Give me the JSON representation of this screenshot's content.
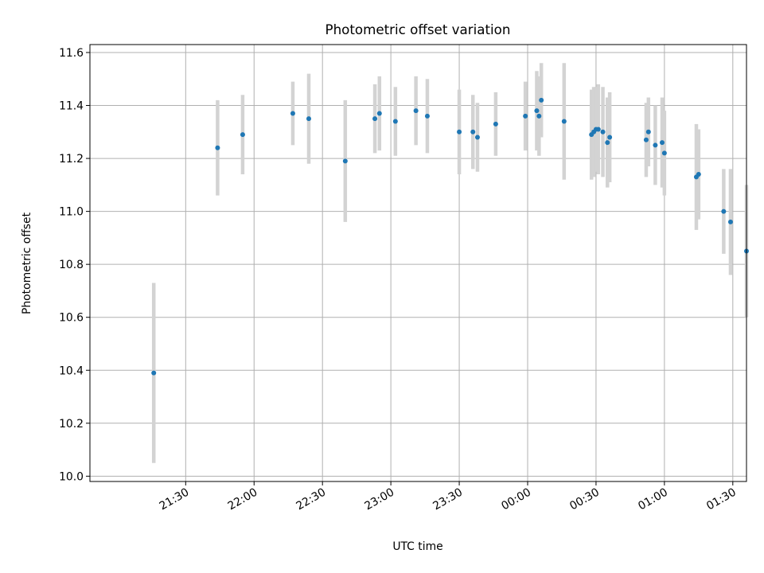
{
  "chart_data": {
    "type": "scatter",
    "title": "Photometric offset variation",
    "xlabel": "UTC time",
    "ylabel": "Photometric offset",
    "x_axis": "time",
    "xlim_minutes_from_2100": [
      -12,
      276
    ],
    "ylim": [
      9.98,
      11.63
    ],
    "x_ticks": [
      {
        "label": "21:30",
        "minute": 30
      },
      {
        "label": "22:00",
        "minute": 60
      },
      {
        "label": "22:30",
        "minute": 90
      },
      {
        "label": "23:00",
        "minute": 120
      },
      {
        "label": "23:30",
        "minute": 150
      },
      {
        "label": "00:00",
        "minute": 180
      },
      {
        "label": "00:30",
        "minute": 210
      },
      {
        "label": "01:00",
        "minute": 240
      },
      {
        "label": "01:30",
        "minute": 270
      }
    ],
    "y_ticks": [
      "10.0",
      "10.2",
      "10.4",
      "10.6",
      "10.8",
      "11.0",
      "11.2",
      "11.4",
      "11.6"
    ],
    "grid": true,
    "colors": {
      "point": "#1f77b4",
      "error_bar": "#d3d3d3",
      "grid": "#b0b0b0",
      "axis": "#000000"
    },
    "series": [
      {
        "points": [
          {
            "time": "21:16",
            "y": 10.39,
            "yerr": 0.34
          },
          {
            "time": "21:44",
            "y": 11.24,
            "yerr": 0.18
          },
          {
            "time": "21:55",
            "y": 11.29,
            "yerr": 0.15
          },
          {
            "time": "22:17",
            "y": 11.37,
            "yerr": 0.12
          },
          {
            "time": "22:24",
            "y": 11.35,
            "yerr": 0.17
          },
          {
            "time": "22:40",
            "y": 11.19,
            "yerr": 0.23
          },
          {
            "time": "22:53",
            "y": 11.35,
            "yerr": 0.13
          },
          {
            "time": "22:55",
            "y": 11.37,
            "yerr": 0.14
          },
          {
            "time": "23:02",
            "y": 11.34,
            "yerr": 0.13
          },
          {
            "time": "23:11",
            "y": 11.38,
            "yerr": 0.13
          },
          {
            "time": "23:16",
            "y": 11.36,
            "yerr": 0.14
          },
          {
            "time": "23:30",
            "y": 11.3,
            "yerr": 0.16
          },
          {
            "time": "23:36",
            "y": 11.3,
            "yerr": 0.14
          },
          {
            "time": "23:38",
            "y": 11.28,
            "yerr": 0.13
          },
          {
            "time": "23:46",
            "y": 11.33,
            "yerr": 0.12
          },
          {
            "time": "23:59",
            "y": 11.36,
            "yerr": 0.13
          },
          {
            "time": "00:04",
            "y": 11.38,
            "yerr": 0.15
          },
          {
            "time": "00:05",
            "y": 11.36,
            "yerr": 0.15
          },
          {
            "time": "00:06",
            "y": 11.42,
            "yerr": 0.14
          },
          {
            "time": "00:16",
            "y": 11.34,
            "yerr": 0.22
          },
          {
            "time": "00:28",
            "y": 11.29,
            "yerr": 0.17
          },
          {
            "time": "00:29",
            "y": 11.3,
            "yerr": 0.17
          },
          {
            "time": "00:30",
            "y": 11.31,
            "yerr": 0.16
          },
          {
            "time": "00:31",
            "y": 11.31,
            "yerr": 0.17
          },
          {
            "time": "00:33",
            "y": 11.3,
            "yerr": 0.17
          },
          {
            "time": "00:35",
            "y": 11.26,
            "yerr": 0.17
          },
          {
            "time": "00:36",
            "y": 11.28,
            "yerr": 0.17
          },
          {
            "time": "00:52",
            "y": 11.27,
            "yerr": 0.14
          },
          {
            "time": "00:53",
            "y": 11.3,
            "yerr": 0.13
          },
          {
            "time": "00:56",
            "y": 11.25,
            "yerr": 0.15
          },
          {
            "time": "00:59",
            "y": 11.26,
            "yerr": 0.17
          },
          {
            "time": "01:00",
            "y": 11.22,
            "yerr": 0.16
          },
          {
            "time": "01:14",
            "y": 11.13,
            "yerr": 0.2
          },
          {
            "time": "01:15",
            "y": 11.14,
            "yerr": 0.17
          },
          {
            "time": "01:26",
            "y": 11.0,
            "yerr": 0.16
          },
          {
            "time": "01:29",
            "y": 10.96,
            "yerr": 0.2
          },
          {
            "time": "01:36",
            "y": 10.85,
            "yerr": 0.25
          }
        ]
      }
    ]
  }
}
